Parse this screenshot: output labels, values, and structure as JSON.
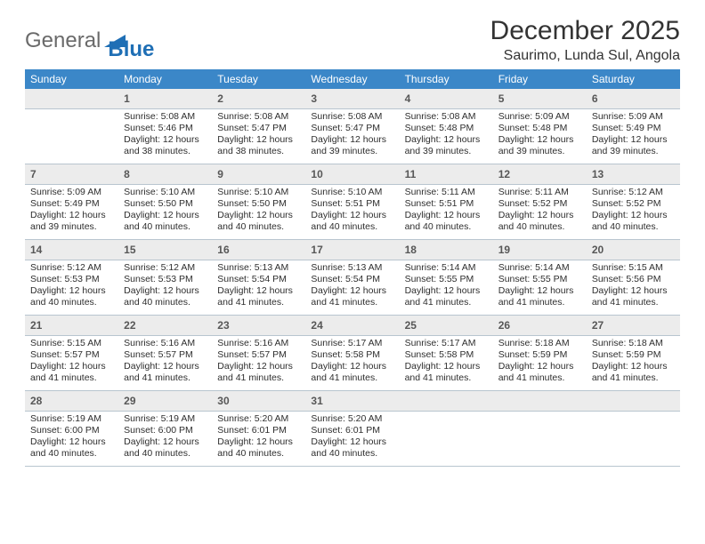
{
  "brand": {
    "part1": "General",
    "part2": "Blue",
    "shape_color": "#1f6fb5"
  },
  "title": "December 2025",
  "location": "Saurimo, Lunda Sul, Angola",
  "colors": {
    "header_bg": "#3b87c8",
    "daynum_bg": "#ececec",
    "border_color": "#b8c5cf",
    "text": "#212121"
  },
  "days_of_week": [
    "Sunday",
    "Monday",
    "Tuesday",
    "Wednesday",
    "Thursday",
    "Friday",
    "Saturday"
  ],
  "first_weekday_index": 1,
  "num_days": 31,
  "cells": {
    "1": {
      "sr": "5:08 AM",
      "ss": "5:46 PM",
      "dl": "12 hours and 38 minutes."
    },
    "2": {
      "sr": "5:08 AM",
      "ss": "5:47 PM",
      "dl": "12 hours and 38 minutes."
    },
    "3": {
      "sr": "5:08 AM",
      "ss": "5:47 PM",
      "dl": "12 hours and 39 minutes."
    },
    "4": {
      "sr": "5:08 AM",
      "ss": "5:48 PM",
      "dl": "12 hours and 39 minutes."
    },
    "5": {
      "sr": "5:09 AM",
      "ss": "5:48 PM",
      "dl": "12 hours and 39 minutes."
    },
    "6": {
      "sr": "5:09 AM",
      "ss": "5:49 PM",
      "dl": "12 hours and 39 minutes."
    },
    "7": {
      "sr": "5:09 AM",
      "ss": "5:49 PM",
      "dl": "12 hours and 39 minutes."
    },
    "8": {
      "sr": "5:10 AM",
      "ss": "5:50 PM",
      "dl": "12 hours and 40 minutes."
    },
    "9": {
      "sr": "5:10 AM",
      "ss": "5:50 PM",
      "dl": "12 hours and 40 minutes."
    },
    "10": {
      "sr": "5:10 AM",
      "ss": "5:51 PM",
      "dl": "12 hours and 40 minutes."
    },
    "11": {
      "sr": "5:11 AM",
      "ss": "5:51 PM",
      "dl": "12 hours and 40 minutes."
    },
    "12": {
      "sr": "5:11 AM",
      "ss": "5:52 PM",
      "dl": "12 hours and 40 minutes."
    },
    "13": {
      "sr": "5:12 AM",
      "ss": "5:52 PM",
      "dl": "12 hours and 40 minutes."
    },
    "14": {
      "sr": "5:12 AM",
      "ss": "5:53 PM",
      "dl": "12 hours and 40 minutes."
    },
    "15": {
      "sr": "5:12 AM",
      "ss": "5:53 PM",
      "dl": "12 hours and 40 minutes."
    },
    "16": {
      "sr": "5:13 AM",
      "ss": "5:54 PM",
      "dl": "12 hours and 41 minutes."
    },
    "17": {
      "sr": "5:13 AM",
      "ss": "5:54 PM",
      "dl": "12 hours and 41 minutes."
    },
    "18": {
      "sr": "5:14 AM",
      "ss": "5:55 PM",
      "dl": "12 hours and 41 minutes."
    },
    "19": {
      "sr": "5:14 AM",
      "ss": "5:55 PM",
      "dl": "12 hours and 41 minutes."
    },
    "20": {
      "sr": "5:15 AM",
      "ss": "5:56 PM",
      "dl": "12 hours and 41 minutes."
    },
    "21": {
      "sr": "5:15 AM",
      "ss": "5:57 PM",
      "dl": "12 hours and 41 minutes."
    },
    "22": {
      "sr": "5:16 AM",
      "ss": "5:57 PM",
      "dl": "12 hours and 41 minutes."
    },
    "23": {
      "sr": "5:16 AM",
      "ss": "5:57 PM",
      "dl": "12 hours and 41 minutes."
    },
    "24": {
      "sr": "5:17 AM",
      "ss": "5:58 PM",
      "dl": "12 hours and 41 minutes."
    },
    "25": {
      "sr": "5:17 AM",
      "ss": "5:58 PM",
      "dl": "12 hours and 41 minutes."
    },
    "26": {
      "sr": "5:18 AM",
      "ss": "5:59 PM",
      "dl": "12 hours and 41 minutes."
    },
    "27": {
      "sr": "5:18 AM",
      "ss": "5:59 PM",
      "dl": "12 hours and 41 minutes."
    },
    "28": {
      "sr": "5:19 AM",
      "ss": "6:00 PM",
      "dl": "12 hours and 40 minutes."
    },
    "29": {
      "sr": "5:19 AM",
      "ss": "6:00 PM",
      "dl": "12 hours and 40 minutes."
    },
    "30": {
      "sr": "5:20 AM",
      "ss": "6:01 PM",
      "dl": "12 hours and 40 minutes."
    },
    "31": {
      "sr": "5:20 AM",
      "ss": "6:01 PM",
      "dl": "12 hours and 40 minutes."
    }
  },
  "labels": {
    "sunrise": "Sunrise: ",
    "sunset": "Sunset: ",
    "daylight": "Daylight: "
  },
  "typography": {
    "title_fontsize": 30,
    "location_fontsize": 16,
    "cell_fontsize": 10.5
  }
}
